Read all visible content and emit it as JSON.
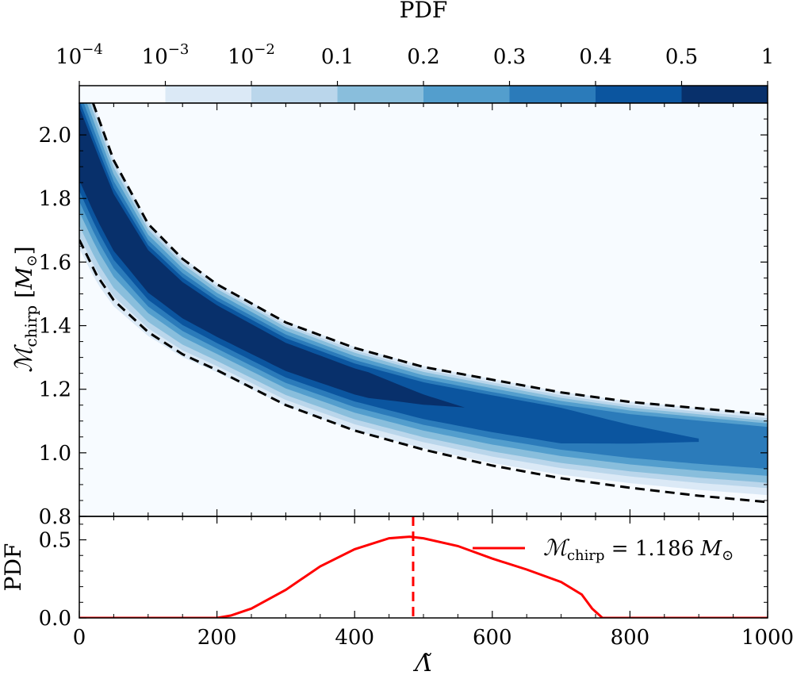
{
  "chart_data": [
    {
      "type": "heatmap",
      "name": "main-density",
      "colorbar": {
        "title": "PDF",
        "position": "top",
        "tick_labels": [
          {
            "base": "10",
            "exp": "−4"
          },
          {
            "base": "10",
            "exp": "−3"
          },
          {
            "base": "10",
            "exp": "−2"
          },
          {
            "base": "0.1",
            "exp": ""
          },
          {
            "base": "0.2",
            "exp": ""
          },
          {
            "base": "0.3",
            "exp": ""
          },
          {
            "base": "0.4",
            "exp": ""
          },
          {
            "base": "0.5",
            "exp": ""
          },
          {
            "base": "1",
            "exp": ""
          }
        ],
        "colors": [
          "#f7fbff",
          "#dbe9f6",
          "#bad6eb",
          "#89bedc",
          "#539ecd",
          "#2b7bba",
          "#0b559f",
          "#08306b"
        ]
      },
      "xlim": [
        0,
        1000
      ],
      "ylim": [
        0.8,
        2.1
      ],
      "yticks": [
        0.8,
        1.0,
        1.2,
        1.4,
        1.6,
        1.8,
        2.0
      ],
      "ytick_labels": [
        "0.8",
        "1.0",
        "1.2",
        "1.4",
        "1.6",
        "1.8",
        "2.0"
      ],
      "ylabel": {
        "main": "ℳ",
        "sub": "chirp",
        "unit_open": "[",
        "unit": "M",
        "unit_sub": "⊙",
        "unit_close": "]"
      },
      "bounds_dashed": [
        {
          "label": "upper",
          "points": [
            [
              20,
              2.1
            ],
            [
              50,
              1.92
            ],
            [
              100,
              1.72
            ],
            [
              150,
              1.61
            ],
            [
              200,
              1.53
            ],
            [
              300,
              1.41
            ],
            [
              400,
              1.33
            ],
            [
              500,
              1.27
            ],
            [
              600,
              1.23
            ],
            [
              700,
              1.19
            ],
            [
              800,
              1.16
            ],
            [
              900,
              1.14
            ],
            [
              1000,
              1.12
            ]
          ]
        },
        {
          "label": "lower",
          "points": [
            [
              0,
              1.67
            ],
            [
              25,
              1.56
            ],
            [
              50,
              1.48
            ],
            [
              100,
              1.38
            ],
            [
              150,
              1.31
            ],
            [
              200,
              1.26
            ],
            [
              300,
              1.15
            ],
            [
              400,
              1.07
            ],
            [
              500,
              1.01
            ],
            [
              600,
              0.96
            ],
            [
              700,
              0.92
            ],
            [
              800,
              0.89
            ],
            [
              900,
              0.865
            ],
            [
              1000,
              0.845
            ]
          ]
        }
      ]
    },
    {
      "type": "line",
      "name": "marginal-pdf",
      "xlim": [
        0,
        1000
      ],
      "ylim": [
        0,
        0.65
      ],
      "xticks": [
        0,
        200,
        400,
        600,
        800,
        1000
      ],
      "xtick_labels": [
        "0",
        "200",
        "400",
        "600",
        "800",
        "1000"
      ],
      "yticks": [
        0.0,
        0.5
      ],
      "ytick_labels": [
        "0.0",
        "0.5"
      ],
      "xlabel": "Λ̃",
      "ylabel": "PDF",
      "series": [
        {
          "name_main": "ℳ",
          "name_sub": "chirp",
          "name_rest": " = 1.186 ",
          "name_unit": "M",
          "name_unit_sub": "⊙",
          "color": "#ff0000",
          "x": [
            0,
            200,
            220,
            250,
            300,
            350,
            400,
            450,
            480,
            500,
            550,
            600,
            650,
            700,
            730,
            745,
            760,
            800,
            1000
          ],
          "y": [
            0,
            0,
            0.015,
            0.06,
            0.18,
            0.33,
            0.44,
            0.51,
            0.52,
            0.51,
            0.46,
            0.38,
            0.31,
            0.23,
            0.15,
            0.06,
            0,
            0,
            0
          ]
        }
      ],
      "vline": {
        "x": 485,
        "color": "#ff0000",
        "style": "dashed"
      }
    }
  ]
}
